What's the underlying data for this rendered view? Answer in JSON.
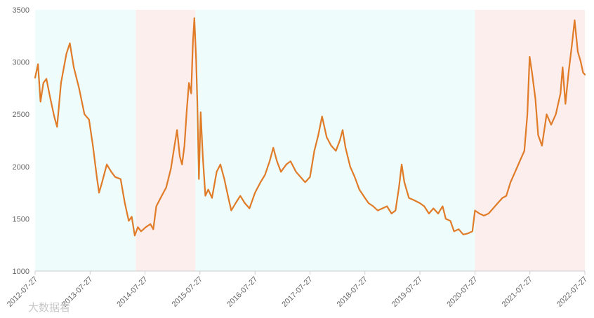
{
  "chart_data": {
    "type": "line",
    "title": "",
    "xlabel": "",
    "ylabel": "",
    "ylim": [
      1000,
      3500
    ],
    "y_ticks": [
      1000,
      1500,
      2000,
      2500,
      3000,
      3500
    ],
    "x_range": [
      "2012-07-27",
      "2022-07-27"
    ],
    "x_ticks": [
      "2012-07-27",
      "2013-07-27",
      "2014-07-27",
      "2015-07-27",
      "2016-07-27",
      "2017-07-27",
      "2018-07-27",
      "2019-07-27",
      "2020-07-27",
      "2021-07-27",
      "2022-07-27"
    ],
    "grid": false,
    "legend": "none",
    "line_color": "#e07b28",
    "regions": [
      {
        "start": "2012-07-27",
        "end": "2014-05-27",
        "color": "#eefcfc"
      },
      {
        "start": "2014-05-27",
        "end": "2015-06-27",
        "color": "#fdeeee"
      },
      {
        "start": "2015-06-27",
        "end": "2020-07-27",
        "color": "#eefcfc"
      },
      {
        "start": "2020-07-27",
        "end": "2022-07-27",
        "color": "#fdeeee"
      }
    ],
    "series": [
      {
        "points": [
          [
            "2012-07-27",
            2850
          ],
          [
            "2012-08-15",
            2980
          ],
          [
            "2012-09-01",
            2620
          ],
          [
            "2012-09-20",
            2800
          ],
          [
            "2012-10-10",
            2840
          ],
          [
            "2012-11-01",
            2680
          ],
          [
            "2012-12-01",
            2480
          ],
          [
            "2012-12-20",
            2380
          ],
          [
            "2013-01-15",
            2800
          ],
          [
            "2013-02-20",
            3080
          ],
          [
            "2013-03-15",
            3180
          ],
          [
            "2013-04-10",
            2950
          ],
          [
            "2013-05-15",
            2750
          ],
          [
            "2013-06-20",
            2500
          ],
          [
            "2013-07-20",
            2450
          ],
          [
            "2013-08-15",
            2200
          ],
          [
            "2013-09-10",
            1900
          ],
          [
            "2013-09-25",
            1750
          ],
          [
            "2013-10-15",
            1850
          ],
          [
            "2013-11-15",
            2020
          ],
          [
            "2013-12-15",
            1950
          ],
          [
            "2014-01-10",
            1900
          ],
          [
            "2014-02-15",
            1880
          ],
          [
            "2014-03-15",
            1650
          ],
          [
            "2014-04-10",
            1480
          ],
          [
            "2014-04-30",
            1520
          ],
          [
            "2014-05-20",
            1340
          ],
          [
            "2014-06-10",
            1420
          ],
          [
            "2014-07-01",
            1380
          ],
          [
            "2014-08-01",
            1420
          ],
          [
            "2014-09-01",
            1450
          ],
          [
            "2014-09-20",
            1400
          ],
          [
            "2014-10-10",
            1620
          ],
          [
            "2014-11-15",
            1720
          ],
          [
            "2014-12-15",
            1800
          ],
          [
            "2015-01-15",
            1980
          ],
          [
            "2015-02-10",
            2220
          ],
          [
            "2015-02-25",
            2350
          ],
          [
            "2015-03-15",
            2100
          ],
          [
            "2015-03-30",
            2020
          ],
          [
            "2015-04-15",
            2200
          ],
          [
            "2015-05-01",
            2550
          ],
          [
            "2015-05-15",
            2800
          ],
          [
            "2015-05-30",
            2700
          ],
          [
            "2015-06-10",
            3180
          ],
          [
            "2015-06-20",
            3420
          ],
          [
            "2015-07-01",
            3050
          ],
          [
            "2015-07-10",
            2600
          ],
          [
            "2015-07-20",
            1880
          ],
          [
            "2015-08-01",
            2520
          ],
          [
            "2015-08-15",
            2100
          ],
          [
            "2015-09-01",
            1720
          ],
          [
            "2015-09-20",
            1780
          ],
          [
            "2015-10-15",
            1700
          ],
          [
            "2015-11-15",
            1950
          ],
          [
            "2015-12-10",
            2020
          ],
          [
            "2016-01-05",
            1880
          ],
          [
            "2016-02-01",
            1700
          ],
          [
            "2016-02-20",
            1580
          ],
          [
            "2016-03-20",
            1650
          ],
          [
            "2016-04-20",
            1720
          ],
          [
            "2016-05-20",
            1650
          ],
          [
            "2016-06-20",
            1600
          ],
          [
            "2016-07-27",
            1750
          ],
          [
            "2016-09-01",
            1850
          ],
          [
            "2016-10-01",
            1920
          ],
          [
            "2016-11-01",
            2050
          ],
          [
            "2016-11-25",
            2180
          ],
          [
            "2016-12-20",
            2050
          ],
          [
            "2017-01-15",
            1950
          ],
          [
            "2017-02-20",
            2020
          ],
          [
            "2017-03-20",
            2050
          ],
          [
            "2017-04-25",
            1950
          ],
          [
            "2017-05-25",
            1900
          ],
          [
            "2017-06-25",
            1850
          ],
          [
            "2017-07-27",
            1900
          ],
          [
            "2017-08-25",
            2150
          ],
          [
            "2017-09-20",
            2300
          ],
          [
            "2017-10-15",
            2480
          ],
          [
            "2017-11-15",
            2280
          ],
          [
            "2017-12-15",
            2200
          ],
          [
            "2018-01-15",
            2150
          ],
          [
            "2018-02-10",
            2250
          ],
          [
            "2018-03-01",
            2350
          ],
          [
            "2018-03-20",
            2180
          ],
          [
            "2018-04-20",
            2000
          ],
          [
            "2018-05-20",
            1900
          ],
          [
            "2018-06-20",
            1780
          ],
          [
            "2018-07-27",
            1700
          ],
          [
            "2018-08-20",
            1650
          ],
          [
            "2018-09-20",
            1620
          ],
          [
            "2018-10-20",
            1580
          ],
          [
            "2018-11-20",
            1600
          ],
          [
            "2018-12-20",
            1620
          ],
          [
            "2019-01-20",
            1550
          ],
          [
            "2019-02-15",
            1580
          ],
          [
            "2019-03-10",
            1800
          ],
          [
            "2019-03-28",
            2020
          ],
          [
            "2019-04-15",
            1850
          ],
          [
            "2019-05-15",
            1700
          ],
          [
            "2019-06-15",
            1680
          ],
          [
            "2019-07-27",
            1650
          ],
          [
            "2019-08-25",
            1620
          ],
          [
            "2019-09-25",
            1550
          ],
          [
            "2019-10-25",
            1600
          ],
          [
            "2019-11-25",
            1550
          ],
          [
            "2019-12-25",
            1620
          ],
          [
            "2020-01-15",
            1500
          ],
          [
            "2020-02-15",
            1480
          ],
          [
            "2020-03-10",
            1380
          ],
          [
            "2020-04-10",
            1400
          ],
          [
            "2020-05-10",
            1350
          ],
          [
            "2020-06-10",
            1360
          ],
          [
            "2020-07-10",
            1380
          ],
          [
            "2020-07-27",
            1580
          ],
          [
            "2020-08-25",
            1550
          ],
          [
            "2020-09-25",
            1530
          ],
          [
            "2020-10-25",
            1550
          ],
          [
            "2020-11-25",
            1600
          ],
          [
            "2020-12-25",
            1650
          ],
          [
            "2021-01-25",
            1700
          ],
          [
            "2021-02-20",
            1720
          ],
          [
            "2021-03-20",
            1850
          ],
          [
            "2021-04-20",
            1950
          ],
          [
            "2021-05-20",
            2050
          ],
          [
            "2021-06-20",
            2150
          ],
          [
            "2021-07-10",
            2500
          ],
          [
            "2021-07-25",
            3050
          ],
          [
            "2021-08-10",
            2900
          ],
          [
            "2021-09-01",
            2650
          ],
          [
            "2021-09-20",
            2300
          ],
          [
            "2021-10-15",
            2200
          ],
          [
            "2021-11-15",
            2500
          ],
          [
            "2021-12-15",
            2400
          ],
          [
            "2022-01-15",
            2500
          ],
          [
            "2022-02-15",
            2700
          ],
          [
            "2022-03-01",
            2950
          ],
          [
            "2022-03-20",
            2600
          ],
          [
            "2022-04-10",
            2900
          ],
          [
            "2022-05-01",
            3150
          ],
          [
            "2022-05-20",
            3400
          ],
          [
            "2022-06-10",
            3100
          ],
          [
            "2022-06-30",
            3000
          ],
          [
            "2022-07-15",
            2900
          ],
          [
            "2022-07-27",
            2880
          ]
        ]
      }
    ]
  },
  "watermark": "大数据看"
}
